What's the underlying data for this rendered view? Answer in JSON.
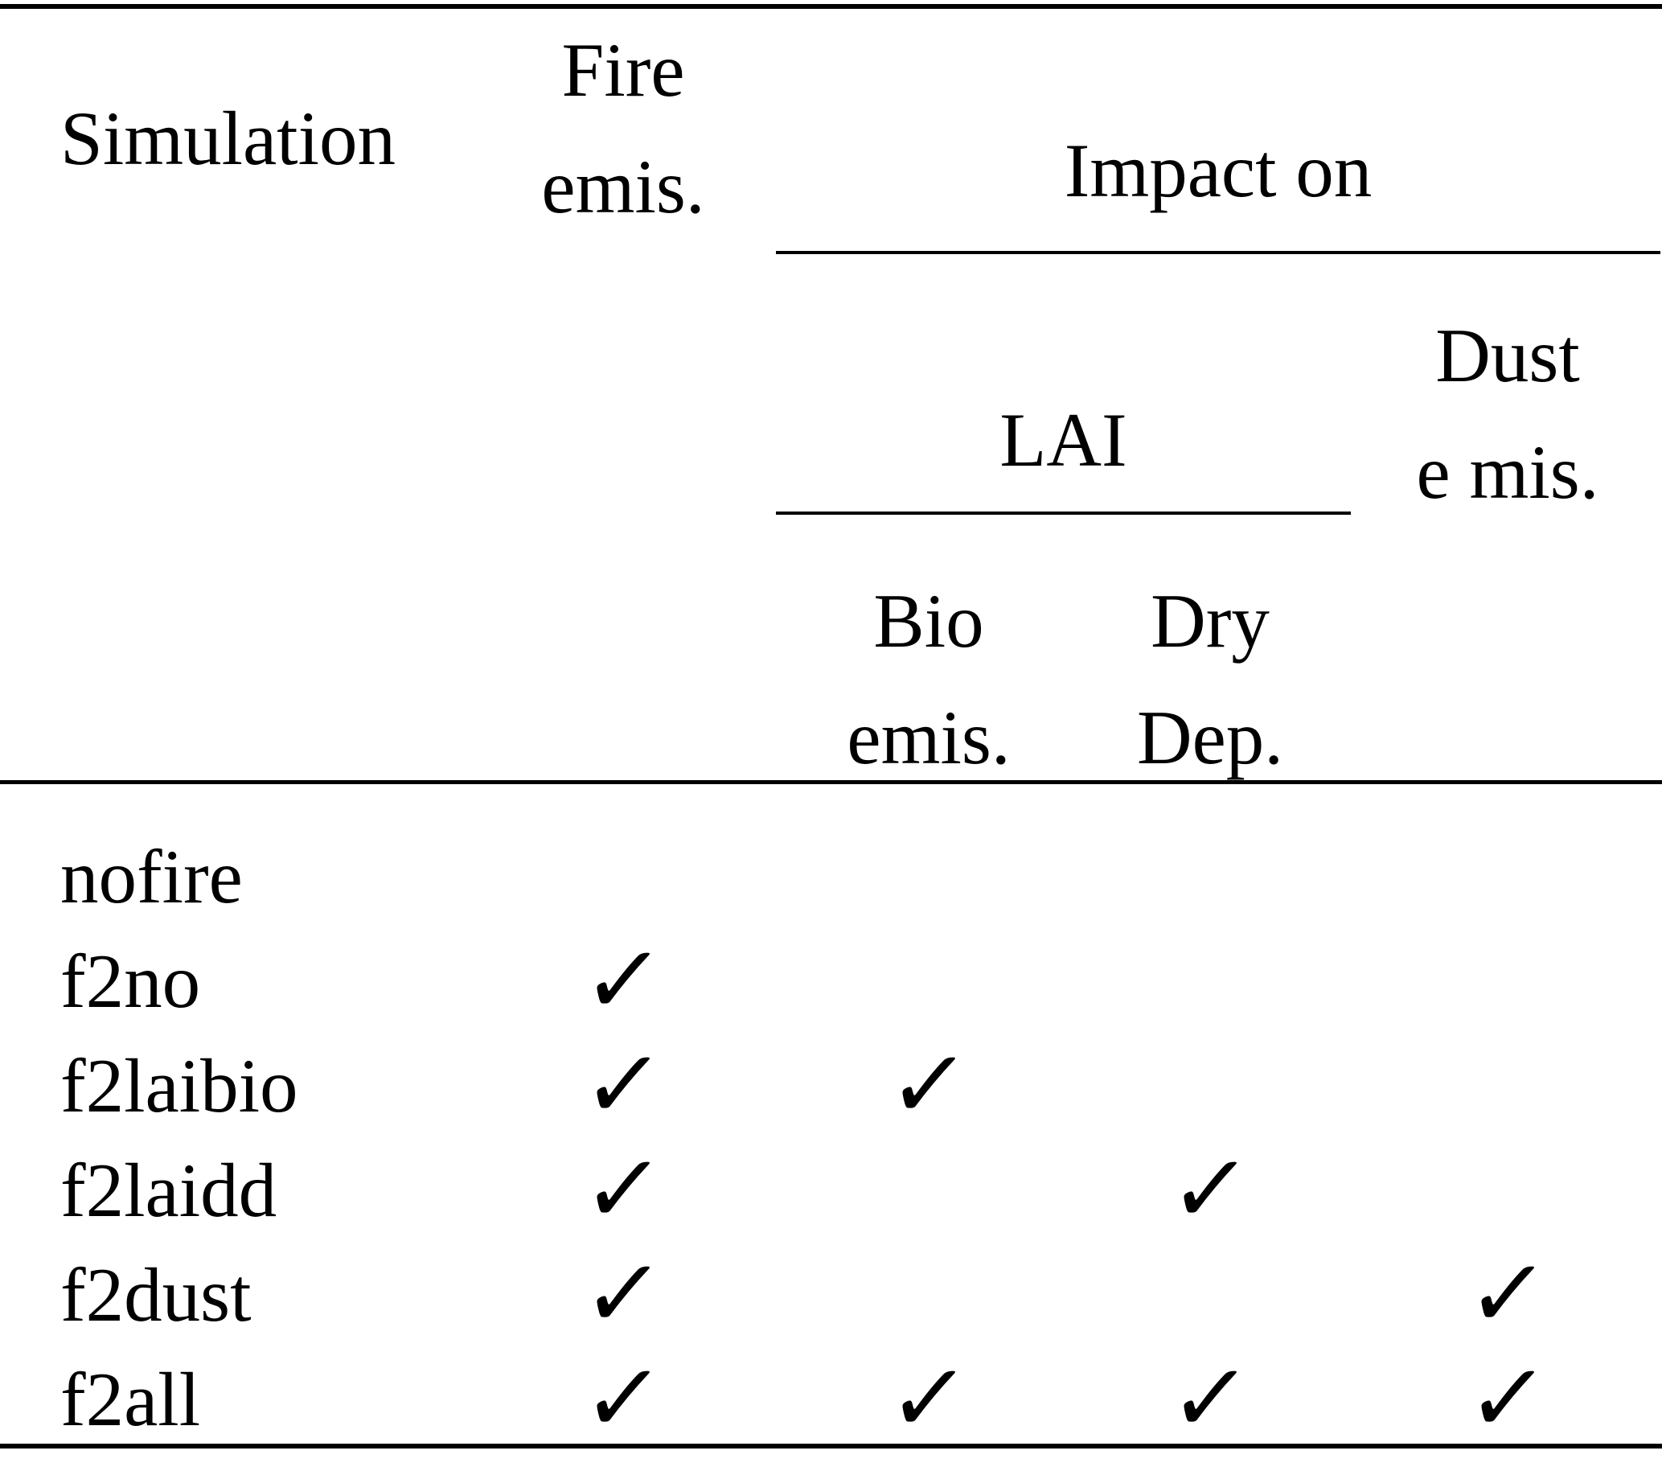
{
  "table": {
    "checkmark": "✓",
    "header": {
      "simulation": "Simulation",
      "fire": {
        "line1": "Fire",
        "line2": "emis."
      },
      "impact_on": "Impact on",
      "lai": "LAI",
      "dust": {
        "line1": "Dust",
        "line2": "e mis."
      },
      "bio": {
        "line1": "Bio",
        "line2": "emis."
      },
      "dry": {
        "line1": "Dry",
        "line2": "Dep."
      }
    },
    "rows": [
      {
        "name": "nofire",
        "fire": false,
        "bio": false,
        "dry": false,
        "dust": false
      },
      {
        "name": "f2no",
        "fire": true,
        "bio": false,
        "dry": false,
        "dust": false
      },
      {
        "name": "f2laibio",
        "fire": true,
        "bio": true,
        "dry": false,
        "dust": false
      },
      {
        "name": "f2laidd",
        "fire": true,
        "bio": false,
        "dry": true,
        "dust": false
      },
      {
        "name": "f2dust",
        "fire": true,
        "bio": false,
        "dry": false,
        "dust": true
      },
      {
        "name": "f2all",
        "fire": true,
        "bio": true,
        "dry": true,
        "dust": true
      }
    ]
  }
}
